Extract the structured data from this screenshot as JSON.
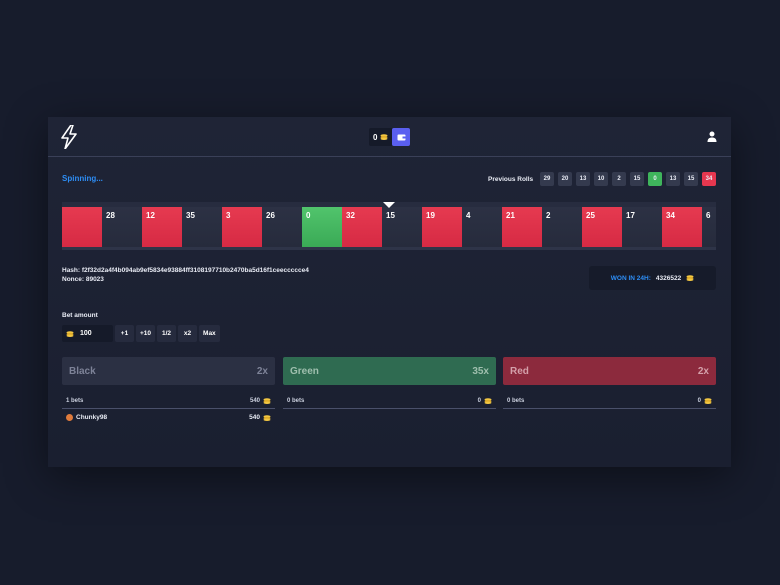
{
  "header": {
    "balance": "0",
    "colors": {
      "wallet_button": "#5a5ff0",
      "accent_blue": "#2d8df5"
    },
    "icons": {
      "logo": "lightning-bolt-logo",
      "balance": "coins-icon",
      "wallet": "wallet-icon",
      "user": "user-icon"
    }
  },
  "status": {
    "text": "Spinning..."
  },
  "previous_rolls": {
    "label": "Previous Rolls",
    "items": [
      {
        "value": "29",
        "color": "black"
      },
      {
        "value": "20",
        "color": "black"
      },
      {
        "value": "13",
        "color": "black"
      },
      {
        "value": "10",
        "color": "black"
      },
      {
        "value": "2",
        "color": "black"
      },
      {
        "value": "15",
        "color": "black"
      },
      {
        "value": "0",
        "color": "green"
      },
      {
        "value": "13",
        "color": "black"
      },
      {
        "value": "15",
        "color": "black"
      },
      {
        "value": "34",
        "color": "red"
      }
    ]
  },
  "wheel": {
    "tiles": [
      {
        "value": "",
        "color": "red"
      },
      {
        "value": "28",
        "color": "black"
      },
      {
        "value": "12",
        "color": "red"
      },
      {
        "value": "35",
        "color": "black"
      },
      {
        "value": "3",
        "color": "red"
      },
      {
        "value": "26",
        "color": "black"
      },
      {
        "value": "0",
        "color": "green"
      },
      {
        "value": "32",
        "color": "red"
      },
      {
        "value": "15",
        "color": "black"
      },
      {
        "value": "19",
        "color": "red"
      },
      {
        "value": "4",
        "color": "black"
      },
      {
        "value": "21",
        "color": "red"
      },
      {
        "value": "2",
        "color": "black"
      },
      {
        "value": "25",
        "color": "red"
      },
      {
        "value": "17",
        "color": "black"
      },
      {
        "value": "34",
        "color": "red"
      },
      {
        "value": "6",
        "color": "black"
      }
    ]
  },
  "fairness": {
    "hash": "Hash: f2f32d2a4f4b094ab9ef5834e93884ff3108197710b2470ba5d16f1ceeccccce4",
    "nonce": "Nonce: 89023"
  },
  "won": {
    "label": "WON IN 24H:",
    "value": "4326522"
  },
  "bet": {
    "label": "Bet amount",
    "amount": "100",
    "buttons": [
      "+1",
      "+10",
      "1/2",
      "x2",
      "Max"
    ]
  },
  "columns": [
    {
      "name": "Black",
      "multiplier": "2x",
      "bets": "1 bets",
      "total": "540",
      "bettors": [
        {
          "name": "Chunky98",
          "amount": "540"
        }
      ]
    },
    {
      "name": "Green",
      "multiplier": "35x",
      "bets": "0 bets",
      "total": "0",
      "bettors": []
    },
    {
      "name": "Red",
      "multiplier": "2x",
      "bets": "0 bets",
      "total": "0",
      "bettors": []
    }
  ]
}
